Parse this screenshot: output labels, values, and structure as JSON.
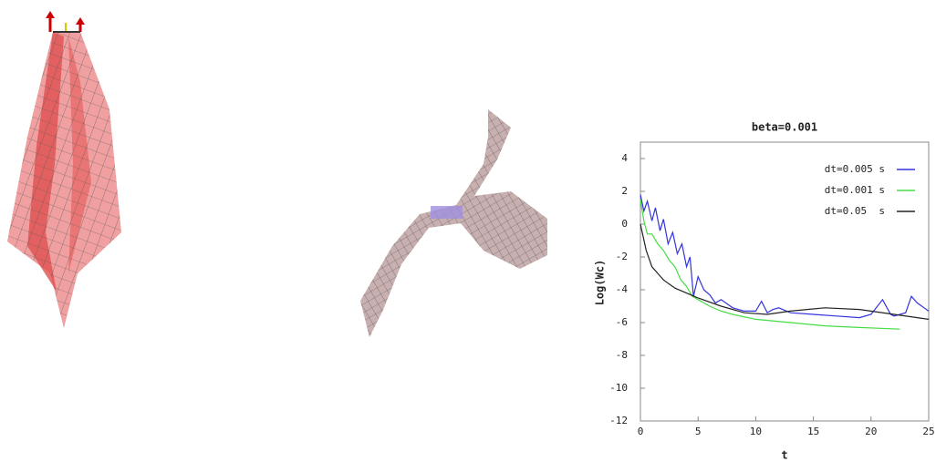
{
  "chart_data": {
    "type": "line",
    "title": "beta=0.001",
    "xlabel": "t",
    "ylabel": "Log(Wc)",
    "xlim": [
      0,
      25
    ],
    "xticks": [
      0,
      5,
      10,
      15,
      20,
      25
    ],
    "ylim": [
      -12,
      5
    ],
    "yticks": [
      -12,
      -10,
      -8,
      -6,
      -4,
      -2,
      0,
      2,
      4
    ],
    "series": [
      {
        "name": "dt=0.005 s",
        "color": "#3333dd",
        "x": [
          0,
          0.3,
          0.6,
          1,
          1.3,
          1.7,
          2,
          2.4,
          2.8,
          3.2,
          3.6,
          4,
          4.3,
          4.6,
          5,
          5.5,
          6,
          6.5,
          7,
          8,
          9,
          10,
          10.5,
          11,
          11.5,
          12,
          13,
          15,
          17,
          19,
          20,
          21,
          21.7,
          22,
          23,
          23.5,
          24,
          25
        ],
        "values": [
          1.8,
          0.8,
          1.4,
          0.2,
          1.0,
          -0.4,
          0.3,
          -1.2,
          -0.5,
          -1.8,
          -1.2,
          -2.6,
          -2.0,
          -4.4,
          -3.2,
          -4.0,
          -4.3,
          -4.8,
          -4.6,
          -5.1,
          -5.3,
          -5.3,
          -4.7,
          -5.4,
          -5.2,
          -5.1,
          -5.4,
          -5.5,
          -5.6,
          -5.7,
          -5.5,
          -4.6,
          -5.5,
          -5.6,
          -5.4,
          -4.4,
          -4.8,
          -5.3
        ]
      },
      {
        "name": "dt=0.001 s",
        "color": "#44dd44",
        "x": [
          0,
          0.3,
          0.6,
          1,
          1.5,
          2,
          2.5,
          3,
          3.5,
          4,
          4.5,
          5,
          6,
          7,
          8,
          10,
          13,
          16,
          19,
          22.5
        ],
        "values": [
          1.5,
          0.2,
          -0.6,
          -0.6,
          -1.2,
          -1.6,
          -2.2,
          -2.6,
          -3.4,
          -3.8,
          -4.4,
          -4.6,
          -5.0,
          -5.3,
          -5.5,
          -5.8,
          -6.0,
          -6.2,
          -6.3,
          -6.4
        ]
      },
      {
        "name": "dt=0.05  s",
        "color": "#222222",
        "x": [
          0,
          0.5,
          1,
          1.5,
          2,
          3,
          4,
          5,
          7,
          9,
          11,
          13,
          16,
          19,
          22,
          25
        ],
        "values": [
          0,
          -1.6,
          -2.6,
          -3.0,
          -3.4,
          -3.9,
          -4.2,
          -4.5,
          -5.0,
          -5.4,
          -5.5,
          -5.3,
          -5.1,
          -5.2,
          -5.5,
          -5.8
        ]
      }
    ]
  }
}
